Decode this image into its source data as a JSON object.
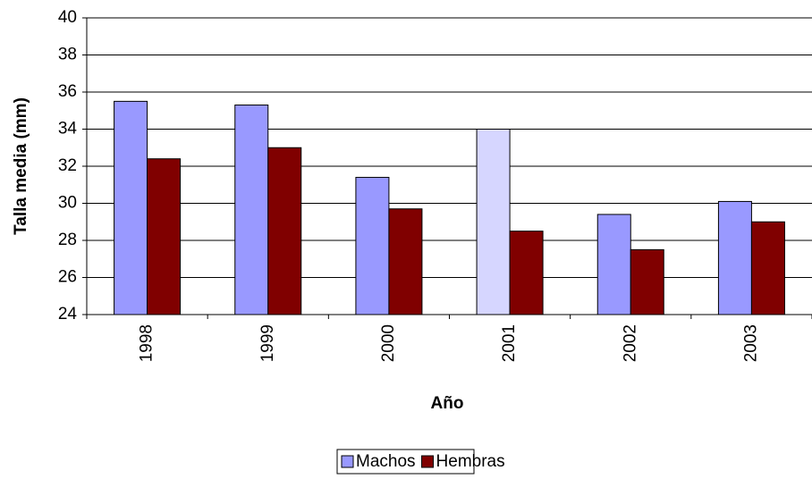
{
  "chart_data": {
    "type": "bar",
    "x_label": "Año",
    "y_label": "Talla media (mm)",
    "categories": [
      "1998",
      "1999",
      "2000",
      "2001",
      "2002",
      "2003"
    ],
    "series": [
      {
        "name": "Machos",
        "color": "#9999ff",
        "colors": [
          "#9999ff",
          "#9999ff",
          "#9999ff",
          "#d6d6ff",
          "#9999ff",
          "#9999ff"
        ],
        "values": [
          35.5,
          35.3,
          31.4,
          34.0,
          29.4,
          30.1
        ]
      },
      {
        "name": "Hembras",
        "color": "#800000",
        "values": [
          32.4,
          33.0,
          29.7,
          28.5,
          27.5,
          29.0
        ]
      }
    ],
    "ylim": [
      24,
      40
    ],
    "yticks": [
      24,
      26,
      28,
      30,
      32,
      34,
      36,
      38,
      40
    ],
    "grid": true,
    "legend": "bottom"
  }
}
